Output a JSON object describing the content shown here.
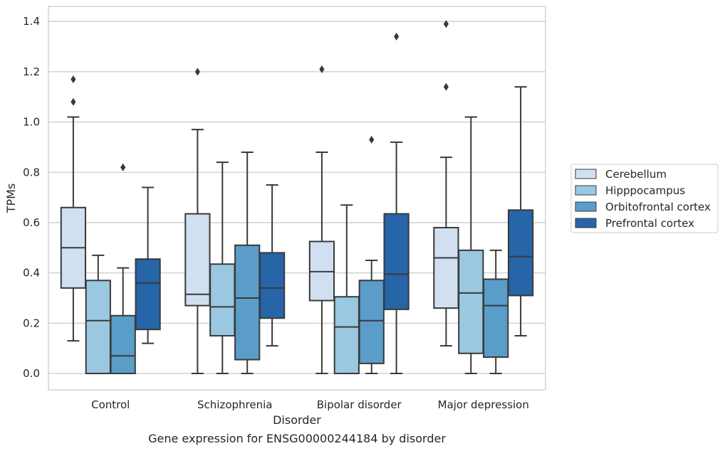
{
  "chart_data": {
    "type": "boxplot",
    "xlabel": "Disorder",
    "ylabel": "TPMs",
    "caption": "Gene expression for ENSG00000244184 by disorder",
    "ylim": [
      -0.065,
      1.46
    ],
    "yticks": [
      0.0,
      0.2,
      0.4,
      0.6,
      0.8,
      1.0,
      1.2,
      1.4
    ],
    "ytick_labels": [
      "0.0",
      "0.2",
      "0.4",
      "0.6",
      "0.8",
      "1.0",
      "1.2",
      "1.4"
    ],
    "grid": "horizontal",
    "legend_position": "right",
    "categories": [
      "Control",
      "Schizophrenia",
      "Bipolar disorder",
      "Major depression"
    ],
    "series": [
      {
        "name": "Cerebellum",
        "color": "#d0e0f1",
        "boxes": [
          {
            "whislo": 0.13,
            "q1": 0.34,
            "med": 0.5,
            "q3": 0.66,
            "whishi": 1.02,
            "fliers": [
              1.08,
              1.17
            ]
          },
          {
            "whislo": 0.0,
            "q1": 0.27,
            "med": 0.315,
            "q3": 0.635,
            "whishi": 0.97,
            "fliers": [
              1.2
            ]
          },
          {
            "whislo": 0.0,
            "q1": 0.29,
            "med": 0.405,
            "q3": 0.525,
            "whishi": 0.88,
            "fliers": [
              1.21
            ]
          },
          {
            "whislo": 0.11,
            "q1": 0.26,
            "med": 0.46,
            "q3": 0.58,
            "whishi": 0.86,
            "fliers": [
              1.14,
              1.39
            ]
          }
        ]
      },
      {
        "name": "Hipppocampus",
        "color": "#9ac8e0",
        "boxes": [
          {
            "whislo": 0.0,
            "q1": 0.0,
            "med": 0.21,
            "q3": 0.37,
            "whishi": 0.47,
            "fliers": []
          },
          {
            "whislo": 0.0,
            "q1": 0.15,
            "med": 0.265,
            "q3": 0.435,
            "whishi": 0.84,
            "fliers": []
          },
          {
            "whislo": 0.0,
            "q1": 0.0,
            "med": 0.185,
            "q3": 0.305,
            "whishi": 0.67,
            "fliers": []
          },
          {
            "whislo": 0.0,
            "q1": 0.08,
            "med": 0.32,
            "q3": 0.49,
            "whishi": 1.02,
            "fliers": []
          }
        ]
      },
      {
        "name": "Orbitofrontal cortex",
        "color": "#5a9dc9",
        "boxes": [
          {
            "whislo": 0.0,
            "q1": 0.0,
            "med": 0.07,
            "q3": 0.23,
            "whishi": 0.42,
            "fliers": [
              0.82
            ]
          },
          {
            "whislo": 0.0,
            "q1": 0.055,
            "med": 0.3,
            "q3": 0.51,
            "whishi": 0.88,
            "fliers": []
          },
          {
            "whislo": 0.0,
            "q1": 0.04,
            "med": 0.21,
            "q3": 0.37,
            "whishi": 0.45,
            "fliers": [
              0.93
            ]
          },
          {
            "whislo": 0.0,
            "q1": 0.065,
            "med": 0.27,
            "q3": 0.375,
            "whishi": 0.49,
            "fliers": []
          }
        ]
      },
      {
        "name": "Prefrontal cortex",
        "color": "#2565a8",
        "boxes": [
          {
            "whislo": 0.12,
            "q1": 0.175,
            "med": 0.36,
            "q3": 0.455,
            "whishi": 0.74,
            "fliers": []
          },
          {
            "whislo": 0.11,
            "q1": 0.22,
            "med": 0.34,
            "q3": 0.48,
            "whishi": 0.75,
            "fliers": []
          },
          {
            "whislo": 0.0,
            "q1": 0.255,
            "med": 0.395,
            "q3": 0.635,
            "whishi": 0.92,
            "fliers": [
              1.34
            ]
          },
          {
            "whislo": 0.15,
            "q1": 0.31,
            "med": 0.465,
            "q3": 0.65,
            "whishi": 1.14,
            "fliers": []
          }
        ]
      }
    ]
  }
}
